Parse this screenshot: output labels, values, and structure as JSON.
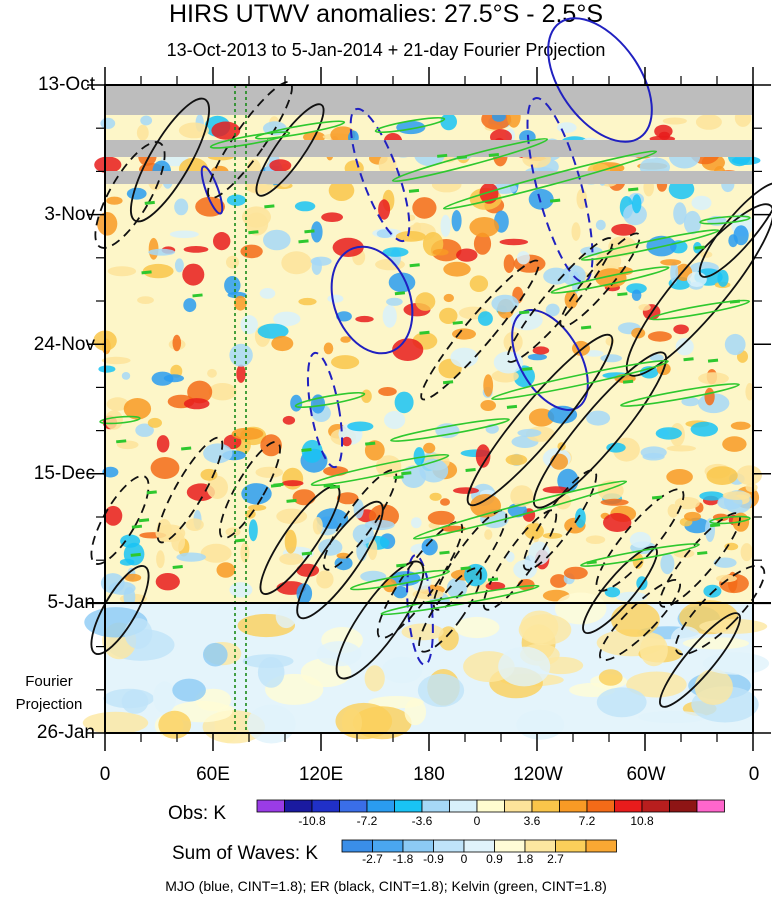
{
  "chart_data": {
    "type": "heatmap",
    "title": "HIRS UTWV anomalies: 27.5°S - 2.5°S",
    "subtitle": "13-Oct-2013 to 5-Jan-2014 + 21-day Fourier Projection",
    "y_ticks": [
      "13-Oct",
      "3-Nov",
      "24-Nov",
      "15-Dec",
      "5-Jan",
      "26-Jan"
    ],
    "x_ticks": [
      "0",
      "60E",
      "120E",
      "180",
      "120W",
      "60W",
      "0"
    ],
    "projection_label_1": "Fourier",
    "projection_label_2": "Projection",
    "obs_label": "Obs: K",
    "obs_ticks": [
      "-10.8",
      "-7.2",
      "-3.6",
      "0",
      "3.6",
      "7.2",
      "10.8"
    ],
    "obs_colors": [
      "#9a3ce6",
      "#1a1aa0",
      "#2030c8",
      "#3a6ee8",
      "#2a9cf0",
      "#19c3f5",
      "#a6d8f7",
      "#d8f1fb",
      "#fffdd0",
      "#fde39a",
      "#f9c54a",
      "#f89a25",
      "#f36b18",
      "#e81c1c",
      "#b81e1e",
      "#8e1515",
      "#ff66cc"
    ],
    "waves_label": "Sum of Waves: K",
    "waves_ticks": [
      "-2.7",
      "-1.8",
      "-0.9",
      "0",
      "0.9",
      "1.8",
      "2.7"
    ],
    "waves_colors": [
      "#3a8ee8",
      "#4aa6f0",
      "#8ccaf5",
      "#bfe3f9",
      "#e0f3fb",
      "#fffcd6",
      "#fde7a0",
      "#fbcf5a",
      "#f9a833"
    ],
    "footer": "MJO (blue, CINT=1.8); ER (black, CINT=1.8); Kelvin (green, CINT=1.8)",
    "contours": {
      "MJO": "blue",
      "ER": "black",
      "Kelvin": "green",
      "cint": 1.8
    }
  }
}
